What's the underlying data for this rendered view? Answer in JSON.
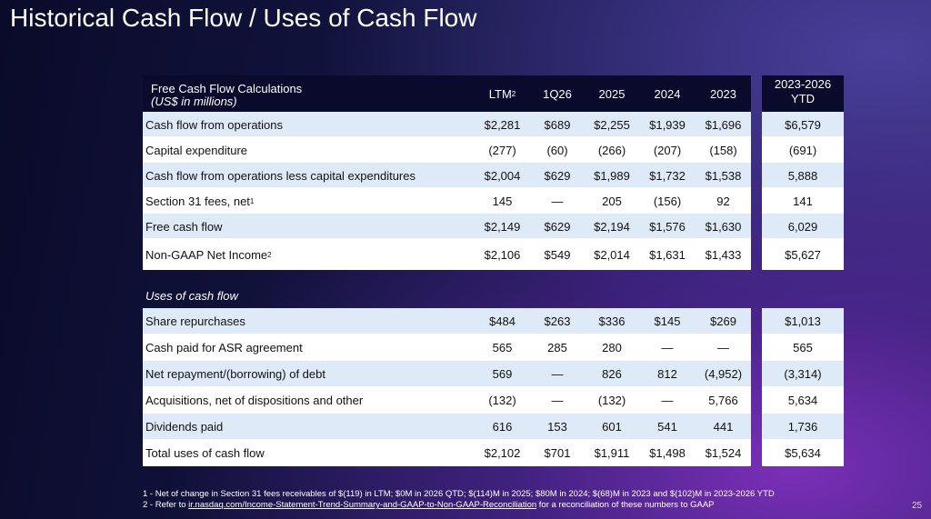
{
  "header": {
    "title": "Historical Cash Flow / Uses of Cash Flow"
  },
  "table": {
    "label": "Free Cash Flow Calculations",
    "label_sub": "(US$ in millions)",
    "columns": [
      {
        "text": "LTM",
        "sup": "2"
      },
      {
        "text": "1Q26"
      },
      {
        "text": "2025"
      },
      {
        "text": "2024"
      },
      {
        "text": "2023"
      }
    ],
    "ytd_header": [
      "2023-2026",
      "YTD"
    ],
    "rows": [
      {
        "label": "Cash flow from operations",
        "values": [
          "$2,281",
          "$689",
          "$2,255",
          "$1,939",
          "$1,696"
        ],
        "ytd": "$6,579"
      },
      {
        "label": "Capital expenditure",
        "values": [
          "(277)",
          "(60)",
          "(266)",
          "(207)",
          "(158)"
        ],
        "ytd": "(691)"
      },
      {
        "label": "Cash flow from operations less capital expenditures",
        "values": [
          "$2,004",
          "$629",
          "$1,989",
          "$1,732",
          "$1,538"
        ],
        "ytd": "5,888"
      },
      {
        "label": "Section 31 fees, net",
        "sup": "1",
        "values": [
          "145",
          "—",
          "205",
          "(156)",
          "92"
        ],
        "ytd": "141"
      },
      {
        "label": "Free cash flow",
        "values": [
          "$2,149",
          "$629",
          "$2,194",
          "$1,576",
          "$1,630"
        ],
        "ytd": "6,029"
      },
      {
        "label": "Non-GAAP Net Income",
        "sup": "2",
        "values": [
          "$2,106",
          "$549",
          "$2,014",
          "$1,631",
          "$1,433"
        ],
        "ytd": "$5,627"
      }
    ]
  },
  "uses": {
    "label": "Uses of cash flow",
    "rows": [
      {
        "label": "Share repurchases",
        "values": [
          "$484",
          "$263",
          "$336",
          "$145",
          "$269"
        ],
        "ytd": "$1,013"
      },
      {
        "label": "Cash paid for ASR agreement",
        "values": [
          "565",
          "285",
          "280",
          "—",
          "—"
        ],
        "ytd": "565"
      },
      {
        "label": "Net repayment/(borrowing) of debt",
        "values": [
          "569",
          "—",
          "826",
          "812",
          "(4,952)"
        ],
        "ytd": "(3,314)"
      },
      {
        "label": "Acquisitions, net of dispositions and other",
        "values": [
          "(132)",
          "—",
          "(132)",
          "—",
          "5,766"
        ],
        "ytd": "5,634"
      },
      {
        "label": "Dividends paid",
        "values": [
          "616",
          "153",
          "601",
          "541",
          "441"
        ],
        "ytd": "1,736"
      },
      {
        "label": "Total uses of cash flow",
        "values": [
          "$2,102",
          "$701",
          "$1,911",
          "$1,498",
          "$1,524"
        ],
        "ytd": "$5,634"
      }
    ]
  },
  "footnotes": {
    "note1": "1 - Net of change in Section 31 fees receivables of $(119) in LTM; $0M in 2026 QTD; $(114)M in 2025; $80M in 2024; $(68)M in 2023 and $(102)M in 2023-2026 YTD",
    "note2_pre": "2 - Refer to ",
    "note2_link": "ir.nasdaq.com/Income-Statement-Trend-Summary-and-GAAP-to-Non-GAAP-Reconciliation",
    "note2_post": " for a reconciliation of these numbers to GAAP"
  },
  "page_number": "25"
}
